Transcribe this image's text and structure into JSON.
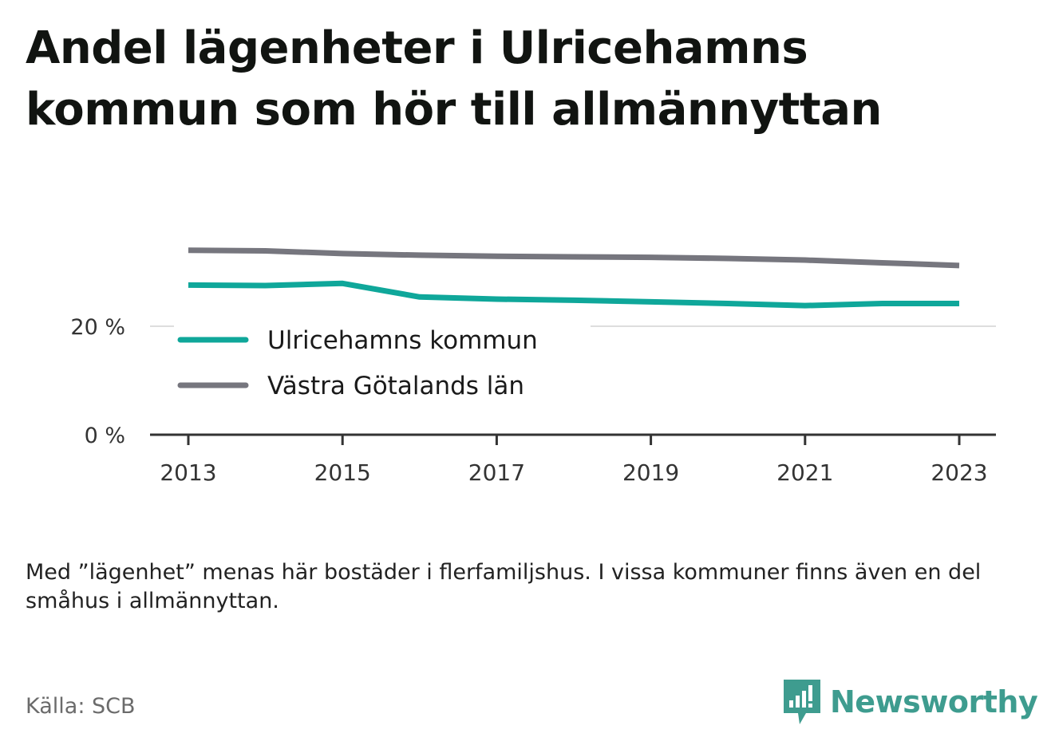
{
  "title": "Andel lägenheter i Ulricehamns kommun som hör till allmännyttan",
  "note": "Med ”lägenhet” menas här bostäder i flerfamiljshus. I vissa kommuner finns även en del småhus i allmännyttan.",
  "source": "Källa: SCB",
  "brand": {
    "name": "Newsworthy",
    "icon": "newsworthy-logo-icon",
    "color": "#3e9c8f"
  },
  "chart_data": {
    "type": "line",
    "title": "Andel lägenheter i Ulricehamns kommun som hör till allmännyttan",
    "xlabel": "",
    "ylabel": "",
    "x": [
      2013,
      2014,
      2015,
      2016,
      2017,
      2018,
      2019,
      2020,
      2021,
      2022,
      2023
    ],
    "xticks": [
      "2013",
      "2015",
      "2017",
      "2019",
      "2021",
      "2023"
    ],
    "yticks": [
      "0 %",
      "20 %"
    ],
    "ylim": [
      0,
      40
    ],
    "grid": "horizontal",
    "legend": "inside, left",
    "series": [
      {
        "name": "Ulricehamns kommun",
        "color": "#0fa79a",
        "values": [
          27.6,
          27.5,
          27.9,
          25.4,
          25.0,
          24.8,
          24.5,
          24.2,
          23.8,
          24.2,
          24.2
        ]
      },
      {
        "name": "Västra Götalands län",
        "color": "#76767e",
        "values": [
          34.0,
          33.9,
          33.4,
          33.1,
          32.9,
          32.8,
          32.7,
          32.5,
          32.2,
          31.7,
          31.2
        ]
      }
    ]
  }
}
